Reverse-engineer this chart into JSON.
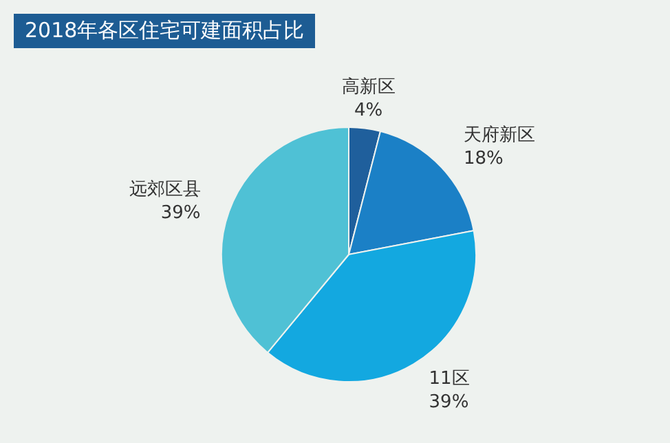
{
  "chart_data": {
    "type": "pie",
    "title": "2018年各区住宅可建面积占比",
    "categories": [
      "高新区",
      "天府新区",
      "11区",
      "远郊区县"
    ],
    "values": [
      4,
      18,
      39,
      39
    ],
    "value_labels": [
      "4%",
      "18%",
      "39%",
      "39%"
    ],
    "colors": [
      "#1f5f9c",
      "#1b80c6",
      "#13a8e0",
      "#4fc1d5"
    ],
    "legend": false
  }
}
